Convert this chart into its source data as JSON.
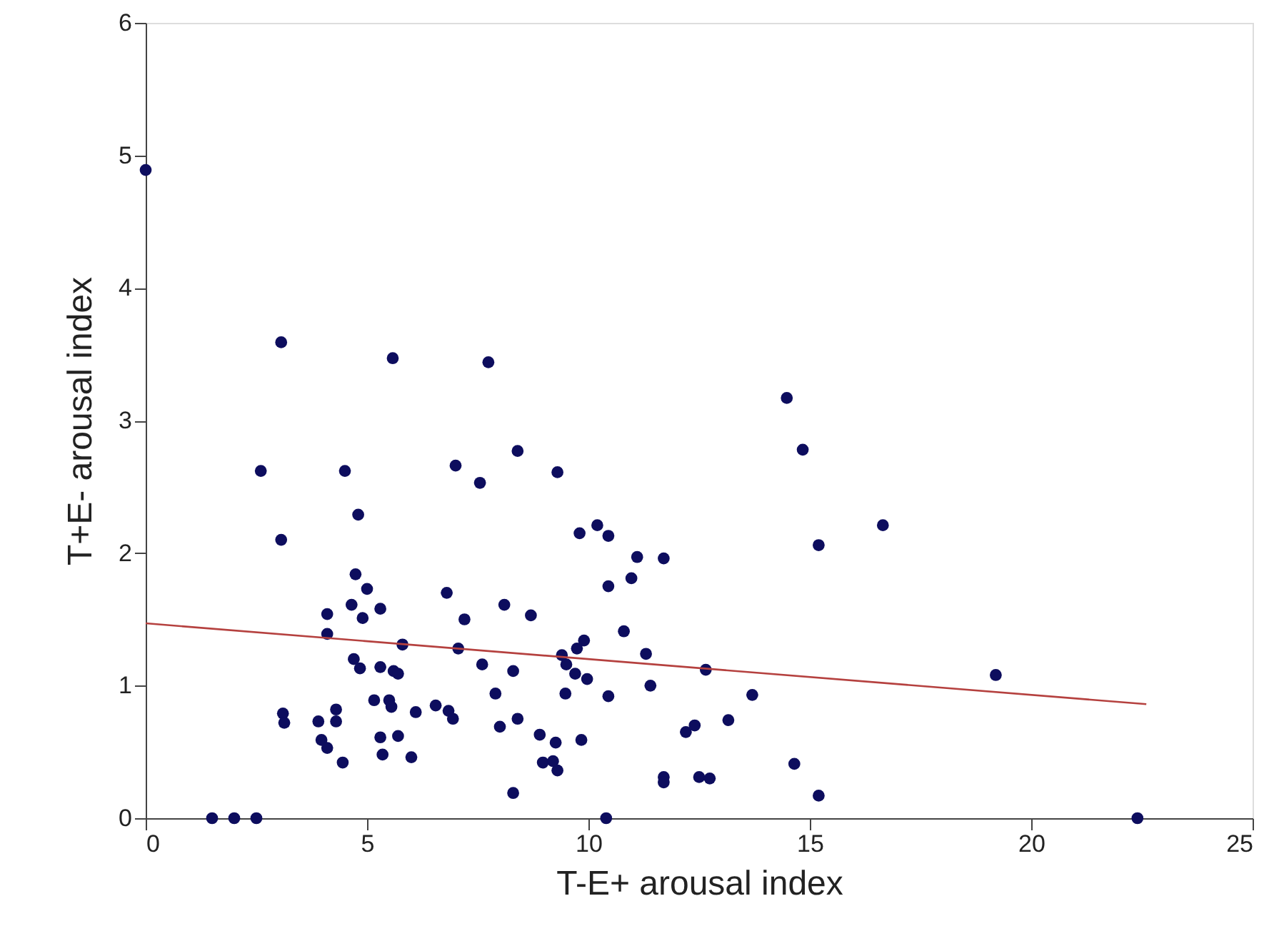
{
  "chart_data": {
    "type": "scatter",
    "xlabel": "T-E+ arousal index",
    "ylabel": "T+E- arousal index",
    "xlim": [
      0,
      25
    ],
    "ylim": [
      0,
      6
    ],
    "xticks": [
      0,
      5,
      10,
      15,
      20,
      25
    ],
    "yticks": [
      0,
      1,
      2,
      3,
      4,
      5,
      6
    ],
    "grid": false,
    "series": [
      {
        "color": "#0d0d5e",
        "marker": "circle",
        "x": [
          0,
          1.5,
          2.0,
          2.5,
          3.06,
          2.6,
          3.06,
          3.1,
          3.13,
          4.1,
          4.1,
          3.9,
          3.97,
          4.1,
          4.3,
          4.3,
          4.45,
          4.5,
          4.8,
          4.74,
          5.0,
          4.65,
          4.9,
          4.7,
          4.84,
          5.3,
          5.58,
          5.8,
          5.3,
          5.6,
          5.7,
          5.16,
          5.5,
          5.55,
          5.3,
          5.7,
          5.35,
          6.0,
          6.1,
          6.55,
          6.84,
          6.94,
          7.0,
          6.8,
          7.06,
          7.2,
          7.55,
          7.6,
          7.74,
          8.4,
          9.3,
          9.8,
          10.2,
          10.45,
          11.1,
          11.7,
          10.45,
          10.97,
          8.1,
          8.7,
          10.8,
          11.3,
          9.9,
          9.74,
          9.4,
          9.5,
          9.7,
          9.97,
          8.3,
          12.65,
          7.9,
          9.48,
          10.45,
          11.4,
          13.7,
          8.0,
          8.4,
          8.9,
          9.26,
          9.84,
          8.97,
          9.2,
          9.3,
          8.3,
          10.4,
          12.2,
          12.4,
          13.16,
          11.7,
          11.7,
          12.5,
          12.74,
          14.48,
          14.84,
          15.2,
          14.65,
          15.2,
          16.65,
          19.2,
          22.4
        ],
        "values": [
          4.89,
          0,
          0,
          0,
          3.59,
          2.62,
          2.1,
          0.79,
          0.72,
          1.54,
          1.39,
          0.73,
          0.59,
          0.53,
          0.82,
          0.73,
          0.42,
          2.62,
          2.29,
          1.84,
          1.73,
          1.61,
          1.51,
          1.2,
          1.13,
          1.58,
          3.47,
          1.31,
          1.14,
          1.11,
          1.09,
          0.89,
          0.89,
          0.84,
          0.61,
          0.62,
          0.48,
          0.46,
          0.8,
          0.85,
          0.81,
          0.75,
          2.66,
          1.7,
          1.28,
          1.5,
          2.53,
          1.16,
          3.44,
          2.77,
          2.61,
          2.15,
          2.21,
          2.13,
          1.97,
          1.96,
          1.75,
          1.81,
          1.61,
          1.53,
          1.41,
          1.24,
          1.34,
          1.28,
          1.23,
          1.16,
          1.09,
          1.05,
          1.11,
          1.12,
          0.94,
          0.94,
          0.92,
          1.0,
          0.93,
          0.69,
          0.75,
          0.63,
          0.57,
          0.59,
          0.42,
          0.43,
          0.36,
          0.19,
          0,
          0.65,
          0.7,
          0.74,
          0.31,
          0.27,
          0.31,
          0.3,
          3.17,
          2.78,
          2.06,
          0.41,
          0.17,
          2.21,
          1.08,
          0
        ]
      },
      {
        "type": "line",
        "color": "#b5413f",
        "x": [
          0,
          22.6
        ],
        "values": [
          1.47,
          0.86
        ]
      }
    ]
  }
}
